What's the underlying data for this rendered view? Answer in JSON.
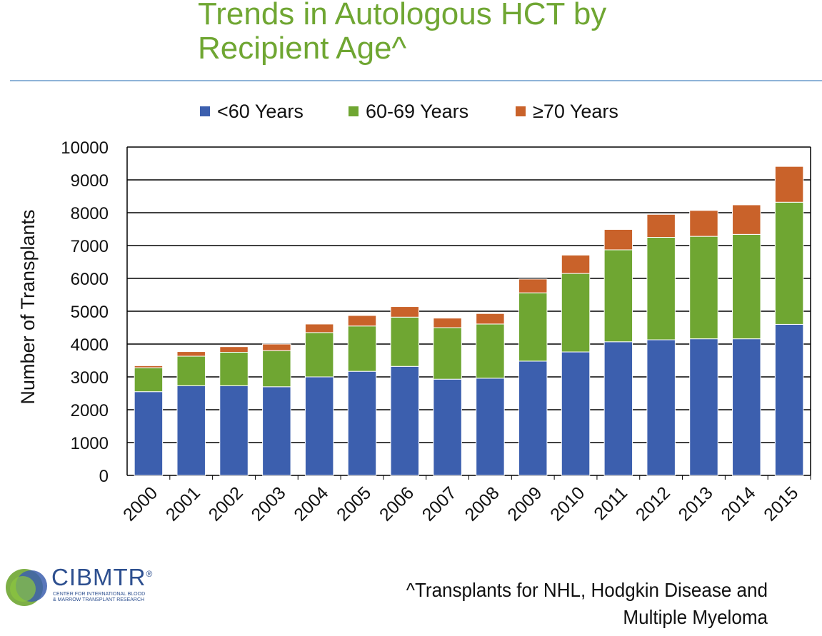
{
  "slide": {
    "title_line1": "Trends in Autologous HCT by",
    "title_line2": "Recipient Age^",
    "footnote_line1": "^Transplants for NHL, Hodgkin Disease and",
    "footnote_line2": "Multiple Myeloma",
    "logo": {
      "name": "CIBMTR",
      "registered": "®",
      "subtitle_line1": "CENTER FOR INTERNATIONAL BLOOD",
      "subtitle_line2": "& MARROW TRANSPLANT RESEARCH"
    }
  },
  "colors": {
    "title": "#6fa632",
    "rule": "#8fb4d8",
    "series": [
      "#3c5fae",
      "#6fa632",
      "#c9622a"
    ]
  },
  "chart_data": {
    "type": "bar",
    "stacked": true,
    "title": "Trends in Autologous HCT by Recipient Age^",
    "xlabel": "",
    "ylabel": "Number of Transplants",
    "ylim": [
      0,
      10000
    ],
    "yticks": [
      0,
      1000,
      2000,
      3000,
      4000,
      5000,
      6000,
      7000,
      8000,
      9000,
      10000
    ],
    "grid": true,
    "legend_position": "top",
    "categories": [
      "2000",
      "2001",
      "2002",
      "2003",
      "2004",
      "2005",
      "2006",
      "2007",
      "2008",
      "2009",
      "2010",
      "2011",
      "2012",
      "2013",
      "2014",
      "2015"
    ],
    "series": [
      {
        "name": "<60 Years",
        "values": [
          2550,
          2730,
          2730,
          2700,
          3000,
          3170,
          3320,
          2930,
          2960,
          3480,
          3760,
          4070,
          4130,
          4160,
          4160,
          4600
        ]
      },
      {
        "name": "60-69 Years",
        "values": [
          730,
          900,
          1020,
          1100,
          1350,
          1380,
          1500,
          1570,
          1650,
          2080,
          2390,
          2800,
          3120,
          3120,
          3180,
          3720
        ]
      },
      {
        "name": "≥70 Years",
        "values": [
          60,
          140,
          170,
          200,
          260,
          320,
          320,
          290,
          320,
          420,
          560,
          620,
          700,
          790,
          900,
          1090
        ]
      }
    ]
  }
}
